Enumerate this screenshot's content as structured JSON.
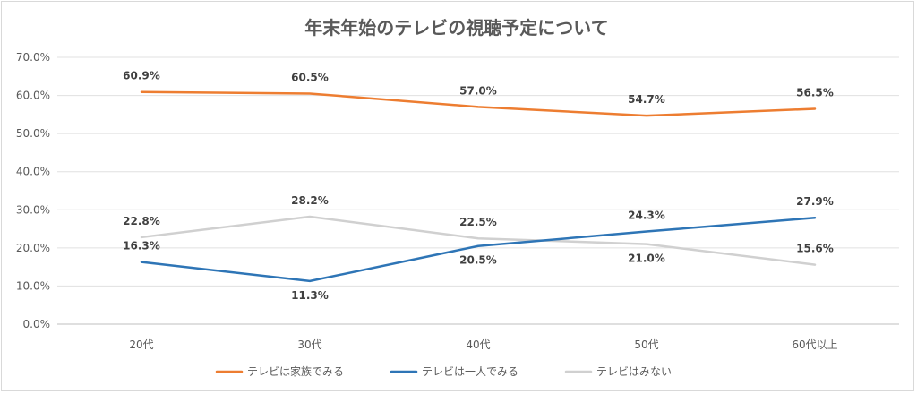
{
  "chart_data": {
    "type": "line",
    "title": "年末年始のテレビの視聴予定について",
    "categories": [
      "20代",
      "30代",
      "40代",
      "50代",
      "60代以上"
    ],
    "ylim": [
      0,
      70
    ],
    "ytick_labels": [
      "0.0%",
      "10.0%",
      "20.0%",
      "30.0%",
      "40.0%",
      "50.0%",
      "60.0%",
      "70.0%"
    ],
    "grid": true,
    "legend": "bottom",
    "series": [
      {
        "name": "テレビは家族でみる",
        "color": "#ED7D31",
        "values": [
          60.9,
          60.5,
          57.0,
          54.7,
          56.5
        ],
        "labels": [
          "60.9%",
          "60.5%",
          "57.0%",
          "54.7%",
          "56.5%"
        ],
        "label_pos": [
          "above",
          "above",
          "above",
          "above",
          "above"
        ]
      },
      {
        "name": "テレビは一人でみる",
        "color": "#2E75B6",
        "values": [
          16.3,
          11.3,
          20.5,
          24.3,
          27.9
        ],
        "labels": [
          "16.3%",
          "11.3%",
          "20.5%",
          "24.3%",
          "27.9%"
        ],
        "label_pos": [
          "above",
          "below",
          "below",
          "above",
          "above"
        ]
      },
      {
        "name": "テレビはみない",
        "color": "#D0D0D0",
        "values": [
          22.8,
          28.2,
          22.5,
          21.0,
          15.6
        ],
        "labels": [
          "22.8%",
          "28.2%",
          "22.5%",
          "21.0%",
          "15.6%"
        ],
        "label_pos": [
          "above",
          "above",
          "above",
          "below",
          "above"
        ]
      }
    ]
  }
}
